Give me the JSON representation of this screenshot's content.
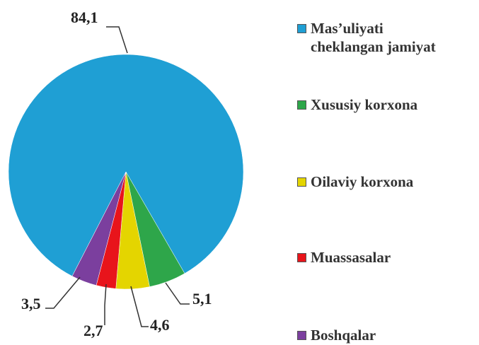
{
  "chart_data": {
    "type": "pie",
    "categories": [
      "Mas’uliyati cheklangan jamiyat",
      "Xususiy korxona",
      "Oilaviy korxona",
      "Muassasalar",
      "Boshqalar"
    ],
    "values": [
      84.1,
      5.1,
      4.6,
      2.7,
      3.5
    ],
    "value_labels": [
      "84,1",
      "5,1",
      "4,6",
      "2,7",
      "3,5"
    ],
    "colors": [
      "#1f9fd4",
      "#2ea64a",
      "#e4d500",
      "#e8141b",
      "#7b3f9e"
    ],
    "legend": "right"
  }
}
